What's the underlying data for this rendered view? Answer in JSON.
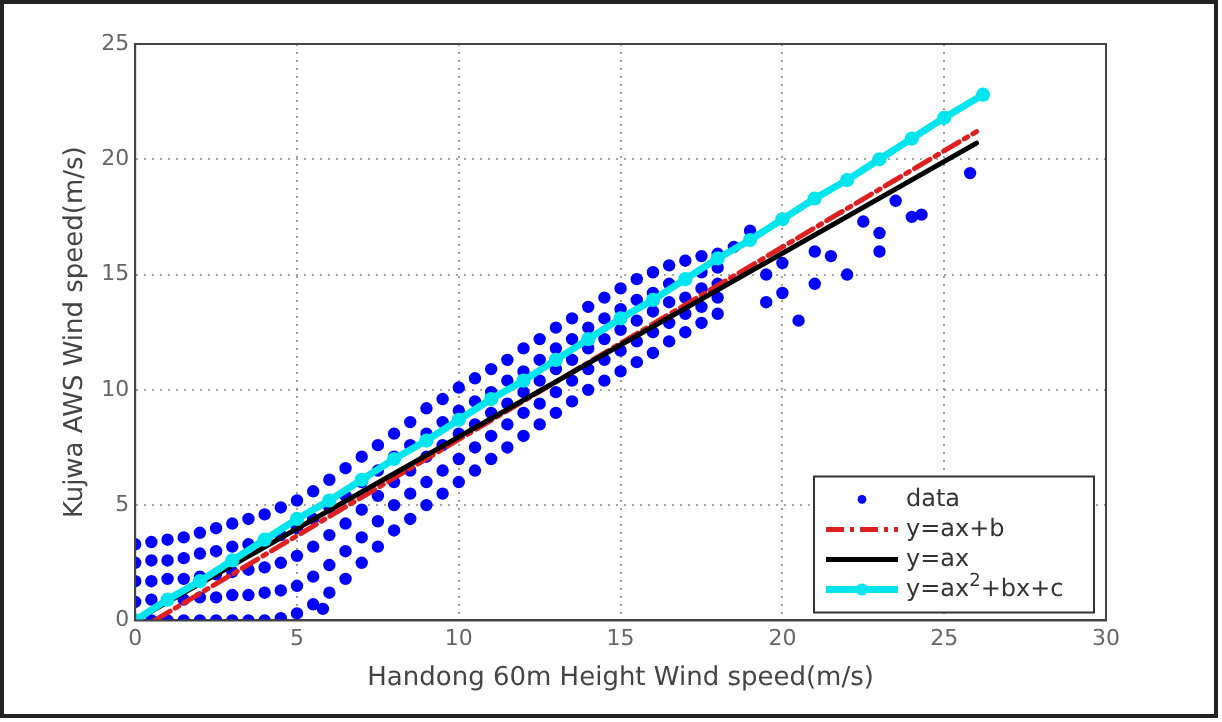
{
  "chart_data": {
    "type": "scatter",
    "xlabel": "Handong 60m Height Wind speed(m/s)",
    "ylabel": "Kujwa AWS Wind speed(m/s)",
    "xlim": [
      0,
      30
    ],
    "xticks": [
      0,
      5,
      10,
      15,
      20,
      25,
      30
    ],
    "ylim": [
      0,
      25
    ],
    "yticks": [
      0,
      5,
      10,
      15,
      20,
      25
    ],
    "grid": true,
    "legend": "bottom right",
    "series": [
      {
        "name": "data",
        "marker": "circle",
        "color": "#0000ff",
        "x": [
          0,
          0.5,
          1,
          1.5,
          2,
          2.5,
          3,
          3.5,
          4,
          4.5,
          5,
          5.5,
          6,
          6.5,
          7,
          7.5,
          8,
          8.5,
          9,
          9.5,
          10,
          10.5,
          11,
          11.5,
          12,
          12.5,
          13,
          13.5,
          14,
          14.5,
          15,
          15.5,
          16,
          16.5,
          17,
          17.5,
          18,
          0.5,
          1,
          1.5,
          2,
          2.5,
          3,
          3.5,
          4,
          4.5,
          5,
          5.5,
          6,
          6.5,
          7,
          7.5,
          8,
          8.5,
          9,
          9.5,
          10,
          10.5,
          11,
          11.5,
          12,
          12.5,
          13,
          13.5,
          14,
          14.5,
          15,
          15.5,
          16,
          16.5,
          17,
          17.5,
          18,
          0,
          0.5,
          1,
          1.5,
          2,
          2.5,
          3,
          3.5,
          4,
          4.5,
          5,
          5.5,
          6,
          6.5,
          7,
          7.5,
          8,
          8.5,
          9,
          9.5,
          10,
          10.5,
          11,
          11.5,
          12,
          12.5,
          13,
          13.5,
          14,
          14.5,
          15,
          15.5,
          16,
          16.5,
          17,
          17.5,
          18,
          0,
          0.5,
          1,
          1.5,
          2,
          2.5,
          3,
          3.5,
          4,
          4.5,
          5,
          5.5,
          6,
          6.5,
          7,
          7.5,
          8,
          8.5,
          9,
          9.5,
          10,
          10.5,
          11,
          11.5,
          12,
          12.5,
          13,
          13.5,
          14,
          14.5,
          15,
          15.5,
          16,
          16.5,
          17,
          17.5,
          18,
          0,
          0.5,
          1,
          1.5,
          2,
          2.5,
          3,
          3.5,
          4,
          4.5,
          5,
          5.5,
          6,
          6.5,
          7,
          7.5,
          8,
          8.5,
          9,
          9.5,
          10,
          10.5,
          11,
          11.5,
          12,
          12.5,
          13,
          13.5,
          14,
          14.5,
          15,
          15.5,
          16,
          16.5,
          17,
          17.5,
          18,
          5.8,
          18.5,
          19,
          19.5,
          20,
          20,
          20.5,
          21,
          21.5,
          22,
          22.5,
          23,
          23,
          23.5,
          24,
          24.3,
          25.8,
          19.5,
          21
        ],
        "values": [
          3.3,
          3.4,
          3.5,
          3.6,
          3.8,
          4,
          4.2,
          4.4,
          4.6,
          4.9,
          5.2,
          5.6,
          6.1,
          6.6,
          7.1,
          7.6,
          8.1,
          8.6,
          9.2,
          9.6,
          10.1,
          10.5,
          10.9,
          11.3,
          11.8,
          12.2,
          12.7,
          13.1,
          13.6,
          14,
          14.4,
          14.8,
          15.1,
          15.4,
          15.6,
          15.8,
          15.9,
          0,
          0,
          0,
          0,
          0,
          0,
          0,
          0,
          0.1,
          0.3,
          0.7,
          1.2,
          1.8,
          2.5,
          3.2,
          3.9,
          4.4,
          5,
          5.5,
          6,
          6.5,
          7,
          7.5,
          8,
          8.5,
          9,
          9.5,
          10,
          10.4,
          10.8,
          11.2,
          11.6,
          12.1,
          12.5,
          12.9,
          13.3,
          1.7,
          1.7,
          1.8,
          1.8,
          1.9,
          2,
          2.1,
          2.2,
          2.3,
          2.5,
          2.8,
          3.2,
          3.7,
          4.2,
          4.8,
          5.4,
          6,
          6.5,
          7.1,
          7.6,
          8.1,
          8.5,
          9,
          9.4,
          9.9,
          10.4,
          10.9,
          11.3,
          11.8,
          12.2,
          12.6,
          13,
          13.4,
          13.8,
          14,
          14.4,
          14.6,
          0.8,
          0.9,
          null,
          0.9,
          1,
          1,
          1.1,
          1.1,
          1.2,
          1.3,
          1.5,
          1.9,
          2.4,
          3,
          3.6,
          4.3,
          5,
          5.5,
          6,
          6.5,
          7,
          7.5,
          8,
          8.5,
          9,
          9.4,
          9.9,
          10.4,
          10.9,
          11.3,
          11.7,
          12.1,
          12.5,
          12.9,
          13.3,
          13.6,
          14,
          2.5,
          2.6,
          2.6,
          2.7,
          2.9,
          3,
          3.2,
          3.3,
          null,
          3.7,
          4,
          4.4,
          4.9,
          5.4,
          6,
          6.5,
          7.1,
          7.6,
          8.1,
          8.6,
          9.1,
          9.5,
          9.9,
          10.4,
          10.8,
          11.3,
          11.8,
          12.2,
          12.7,
          13.1,
          13.5,
          13.9,
          14.2,
          14.6,
          null,
          15.1,
          15.3,
          0.5,
          16.2,
          16.9,
          15,
          15.5,
          14.2,
          13,
          16,
          15.8,
          15,
          17.3,
          16,
          16.8,
          18.2,
          17.5,
          17.6,
          19.4,
          13.8,
          14.6
        ]
      },
      {
        "name": "y=ax+b",
        "type": "line",
        "line_style": "dashed",
        "color": "#e02020",
        "x": [
          0.6,
          26
        ],
        "values": [
          0,
          21.2
        ]
      },
      {
        "name": "y=ax",
        "type": "line",
        "line_style": "solid",
        "color": "#000000",
        "x": [
          0,
          26
        ],
        "values": [
          0,
          20.7
        ]
      },
      {
        "name": "y=ax$^{2}$+bx+c",
        "type": "line",
        "line_style": "solid",
        "marker": "circle",
        "color": "#00e5ee",
        "x": [
          0,
          1,
          2,
          3,
          4,
          5,
          6,
          7,
          8,
          9,
          10,
          11,
          12,
          13,
          14,
          15,
          16,
          17,
          18,
          19,
          20,
          21,
          22,
          23,
          24,
          25,
          26.2
        ],
        "values": [
          0,
          0.9,
          1.7,
          2.6,
          3.5,
          4.4,
          5.2,
          6.1,
          7,
          7.8,
          8.7,
          9.6,
          10.4,
          11.3,
          12.2,
          13.1,
          13.9,
          14.8,
          15.7,
          16.5,
          17.4,
          18.3,
          19.1,
          20,
          20.9,
          21.8,
          22.8
        ]
      }
    ]
  }
}
